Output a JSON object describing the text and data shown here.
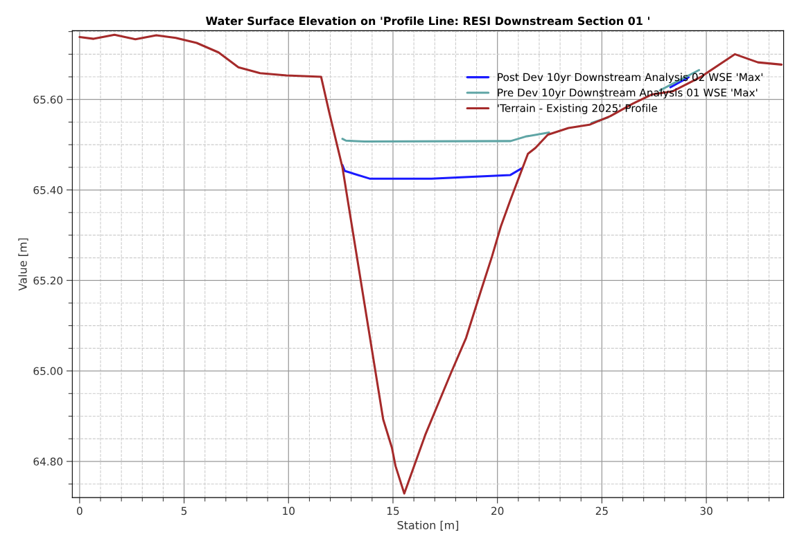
{
  "chart_data": {
    "type": "line",
    "title": "Water Surface Elevation on 'Profile Line: RESI Downstream Section 01 '",
    "xlabel": "Station [m]",
    "ylabel": "Value [m]",
    "xlim": [
      -0.35,
      33.7
    ],
    "xticks": [
      0,
      5,
      10,
      15,
      20,
      25,
      30
    ],
    "ylim": [
      64.72,
      65.752
    ],
    "yticks": [
      {
        "value": 64.8,
        "label": "64.80"
      },
      {
        "value": 65.0,
        "label": "65.00"
      },
      {
        "value": 65.2,
        "label": "65.20"
      },
      {
        "value": 65.4,
        "label": "65.40"
      },
      {
        "value": 65.6,
        "label": "65.60"
      }
    ],
    "grid": true,
    "legend": "top right",
    "line_style": "solid",
    "marker": "none",
    "series": [
      {
        "name": "Post Dev 10yr Downstream Analysis 02 WSE 'Max'",
        "color": "#1a1aff",
        "x": [
          12.58,
          12.69,
          13.88,
          16.84,
          20.62,
          21.17,
          25.0,
          28.28,
          29.15
        ],
        "values": [
          65.455,
          65.442,
          65.425,
          65.425,
          65.433,
          65.448,
          null,
          65.627,
          65.649
        ]
      },
      {
        "name": "Pre Dev 10yr Downstream Analysis 01 WSE 'Max'",
        "color": "#5fa5a5",
        "x": [
          12.58,
          12.75,
          13.64,
          20.63,
          21.35,
          22.47,
          23.5,
          24.5,
          25.29,
          26.5,
          27.78,
          29.65
        ],
        "values": [
          65.513,
          65.509,
          65.507,
          65.508,
          65.518,
          65.527,
          null,
          65.548,
          65.56,
          null,
          65.62,
          65.665
        ]
      },
      {
        "name": "'Terrain - Existing 2025' Profile",
        "color": "#a52a2a",
        "x": [
          0,
          0.67,
          1.67,
          2.67,
          3.67,
          4.6,
          5.6,
          6.65,
          7.6,
          8.64,
          9.9,
          11.56,
          11.93,
          12.58,
          14.53,
          14.95,
          15.12,
          15.54,
          16.54,
          17.79,
          18.5,
          19.21,
          19.74,
          20.16,
          20.63,
          21.46,
          21.82,
          22.41,
          23.4,
          24.4,
          25.4,
          26.49,
          27.39,
          28.39,
          29.71,
          31.37,
          32.47,
          33.6
        ],
        "values": [
          65.738,
          65.734,
          65.743,
          65.733,
          65.742,
          65.736,
          65.725,
          65.704,
          65.671,
          65.658,
          65.653,
          65.65,
          65.575,
          65.45,
          64.893,
          64.83,
          64.79,
          64.729,
          64.858,
          64.997,
          65.073,
          65.177,
          65.253,
          65.319,
          65.379,
          65.48,
          65.493,
          65.522,
          65.537,
          65.544,
          65.563,
          65.591,
          65.611,
          65.618,
          65.649,
          65.7,
          65.682,
          65.677
        ]
      }
    ]
  }
}
